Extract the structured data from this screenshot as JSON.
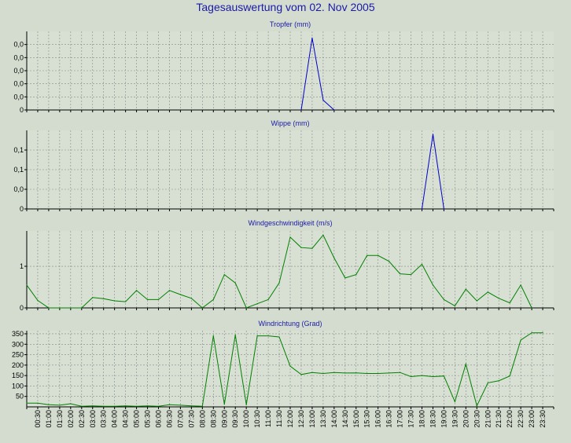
{
  "page": {
    "title": "Tagesauswertung vom 02. Nov 2005"
  },
  "colors": {
    "background": "#d4dccf",
    "title": "#1a1aa8",
    "blue_series": "#0000c8",
    "green_series": "#008000",
    "grid": "#888888"
  },
  "time_labels": [
    "00:30",
    "01:00",
    "01:30",
    "02:00",
    "02:30",
    "03:00",
    "03:30",
    "04:00",
    "04:30",
    "05:00",
    "05:30",
    "06:00",
    "06:30",
    "07:00",
    "07:30",
    "08:00",
    "08:30",
    "09:00",
    "09:30",
    "10:00",
    "10:30",
    "11:00",
    "11:30",
    "12:00",
    "12:30",
    "13:00",
    "13:30",
    "14:00",
    "14:30",
    "15:00",
    "15:30",
    "16:00",
    "16:30",
    "17:00",
    "17:30",
    "18:00",
    "18:30",
    "19:00",
    "19:30",
    "20:00",
    "20:30",
    "21:00",
    "21:30",
    "22:00",
    "22:30",
    "23:00",
    "23:30"
  ],
  "chart_data": [
    {
      "type": "line",
      "title": "Tropfer (mm)",
      "color": "#0000c8",
      "x": [
        "12:30",
        "13:00",
        "13:30",
        "14:00"
      ],
      "values": [
        0,
        0.011,
        0.0015,
        0
      ],
      "ylim": [
        0,
        0.012
      ],
      "yticks": [
        0,
        0.002,
        0.004,
        0.006,
        0.008,
        0.01
      ],
      "ytick_labels": [
        "0",
        "0,0",
        "0,0",
        "0,0",
        "0,0",
        "0,0"
      ],
      "grid": true
    },
    {
      "type": "line",
      "title": "Wippe (mm)",
      "color": "#0000c8",
      "x": [
        "18:00",
        "18:30",
        "19:00"
      ],
      "values": [
        0,
        0.19,
        0
      ],
      "ylim": [
        0,
        0.2
      ],
      "yticks": [
        0,
        0.05,
        0.1,
        0.15
      ],
      "ytick_labels": [
        "0",
        "0,0",
        "0,1",
        "0,1"
      ],
      "grid": true
    },
    {
      "type": "line",
      "title": "Windgeschwindigkeit (m/s)",
      "color": "#008000",
      "x": [
        "00:00",
        "00:30",
        "01:00",
        "01:30",
        "02:00",
        "02:30",
        "03:00",
        "03:30",
        "04:00",
        "04:30",
        "05:00",
        "05:30",
        "06:00",
        "06:30",
        "07:00",
        "07:30",
        "08:00",
        "08:30",
        "09:00",
        "09:30",
        "10:00",
        "10:30",
        "11:00",
        "11:30",
        "12:00",
        "12:30",
        "13:00",
        "13:30",
        "14:00",
        "14:30",
        "15:00",
        "15:30",
        "16:00",
        "16:30",
        "17:00",
        "17:30",
        "18:00",
        "18:30",
        "19:00",
        "19:30",
        "20:00",
        "20:30",
        "21:00",
        "21:30",
        "22:00",
        "22:30",
        "23:00"
      ],
      "values": [
        0.55,
        0.18,
        0,
        0,
        0,
        0,
        0.25,
        0.22,
        0.17,
        0.15,
        0.42,
        0.2,
        0.2,
        0.42,
        0.32,
        0.23,
        0,
        0.2,
        0.8,
        0.6,
        0,
        0.1,
        0.2,
        0.6,
        1.7,
        1.45,
        1.43,
        1.75,
        1.2,
        0.72,
        0.8,
        1.26,
        1.26,
        1.12,
        0.82,
        0.8,
        1.05,
        0.55,
        0.2,
        0.05,
        0.45,
        0.17,
        0.38,
        0.23,
        0.12,
        0.55,
        0
      ],
      "ylim": [
        0,
        1.85
      ],
      "yticks": [
        0,
        1
      ],
      "ytick_labels": [
        "0",
        "1"
      ],
      "grid": true
    },
    {
      "type": "line",
      "title": "Windrichtung (Grad)",
      "color": "#008000",
      "x": [
        "00:00",
        "00:30",
        "01:00",
        "01:30",
        "02:00",
        "02:30",
        "03:00",
        "03:30",
        "04:00",
        "04:30",
        "05:00",
        "05:30",
        "06:00",
        "06:30",
        "07:00",
        "07:30",
        "08:00",
        "08:30",
        "09:00",
        "09:30",
        "10:00",
        "10:30",
        "11:00",
        "11:30",
        "12:00",
        "12:30",
        "13:00",
        "13:30",
        "14:00",
        "14:30",
        "15:00",
        "15:30",
        "16:00",
        "16:30",
        "17:00",
        "17:30",
        "18:00",
        "18:30",
        "19:00",
        "19:30",
        "20:00",
        "20:30",
        "21:00",
        "21:30",
        "22:00",
        "22:30",
        "23:00",
        "23:30"
      ],
      "values": [
        18,
        18,
        10,
        8,
        15,
        3,
        5,
        3,
        3,
        5,
        3,
        5,
        3,
        10,
        8,
        5,
        3,
        340,
        12,
        345,
        10,
        340,
        340,
        335,
        195,
        155,
        165,
        160,
        165,
        162,
        163,
        160,
        160,
        162,
        165,
        145,
        150,
        145,
        148,
        25,
        205,
        5,
        115,
        125,
        148,
        320,
        355,
        355
      ],
      "ylim": [
        0,
        365
      ],
      "yticks": [
        50,
        100,
        150,
        200,
        250,
        300,
        350
      ],
      "ytick_labels": [
        "50",
        "100",
        "150",
        "200",
        "250",
        "300",
        "350"
      ],
      "grid": true
    }
  ]
}
